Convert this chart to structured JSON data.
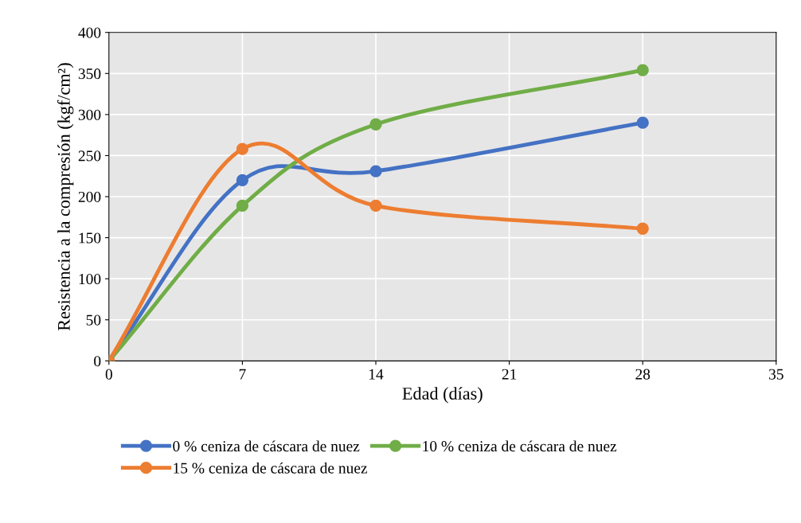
{
  "chart_data": {
    "type": "line",
    "xlabel": "Edad (días)",
    "ylabel": "Resistencia a la compresión (kgf/cm²)",
    "x": [
      0,
      7,
      14,
      28
    ],
    "series": [
      {
        "name": "0 % ceniza de cáscara de nuez",
        "color": "#4472c4",
        "values": [
          0,
          220,
          231,
          290
        ]
      },
      {
        "name": "10 % ceniza de cáscara de nuez",
        "color": "#70ad47",
        "values": [
          0,
          189,
          288,
          354
        ]
      },
      {
        "name": "15 % ceniza de cáscara de nuez",
        "color": "#ed7d31",
        "values": [
          0,
          258,
          189,
          161
        ]
      }
    ],
    "xlim": [
      0,
      35
    ],
    "xticks": [
      0,
      7,
      14,
      21,
      28,
      35
    ],
    "ylim": [
      0,
      400
    ],
    "yticks": [
      0,
      50,
      100,
      150,
      200,
      250,
      300,
      350,
      400
    ],
    "grid": true,
    "legend": "bottom",
    "marker": "circle",
    "line_style": "solid"
  }
}
